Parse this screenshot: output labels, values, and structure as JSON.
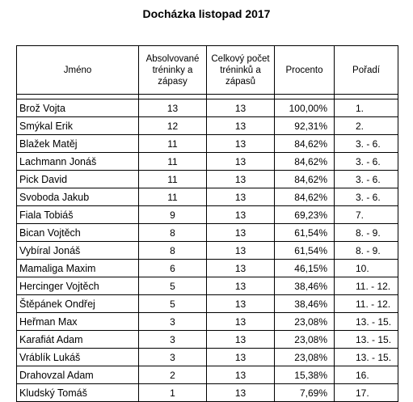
{
  "title": "Docházka listopad 2017",
  "headers": {
    "name": "Jméno",
    "attended": "Absolvované tréninky a zápasy",
    "total": "Celkový počet tréninků a zápasů",
    "percent": "Procento",
    "rank": "Pořadí"
  },
  "rows": [
    {
      "name": "Brož Vojta",
      "attended": "13",
      "total": "13",
      "percent": "100,00%",
      "rank": "1."
    },
    {
      "name": "Smýkal Erik",
      "attended": "12",
      "total": "13",
      "percent": "92,31%",
      "rank": "2."
    },
    {
      "name": "Blažek Matěj",
      "attended": "11",
      "total": "13",
      "percent": "84,62%",
      "rank": "3. - 6."
    },
    {
      "name": "Lachmann Jonáš",
      "attended": "11",
      "total": "13",
      "percent": "84,62%",
      "rank": "3. - 6."
    },
    {
      "name": "Pick David",
      "attended": "11",
      "total": "13",
      "percent": "84,62%",
      "rank": "3. - 6."
    },
    {
      "name": "Svoboda Jakub",
      "attended": "11",
      "total": "13",
      "percent": "84,62%",
      "rank": "3. - 6."
    },
    {
      "name": "Fiala Tobiáš",
      "attended": "9",
      "total": "13",
      "percent": "69,23%",
      "rank": "7."
    },
    {
      "name": "Bican Vojtěch",
      "attended": "8",
      "total": "13",
      "percent": "61,54%",
      "rank": "8. - 9."
    },
    {
      "name": "Vybíral Jonáš",
      "attended": "8",
      "total": "13",
      "percent": "61,54%",
      "rank": "8. - 9."
    },
    {
      "name": "Mamaliga Maxim",
      "attended": "6",
      "total": "13",
      "percent": "46,15%",
      "rank": "10."
    },
    {
      "name": "Hercinger Vojtěch",
      "attended": "5",
      "total": "13",
      "percent": "38,46%",
      "rank": "11. - 12."
    },
    {
      "name": "Štěpánek Ondřej",
      "attended": "5",
      "total": "13",
      "percent": "38,46%",
      "rank": "11. - 12."
    },
    {
      "name": "Heřman Max",
      "attended": "3",
      "total": "13",
      "percent": "23,08%",
      "rank": "13. - 15."
    },
    {
      "name": "Karafiát Adam",
      "attended": "3",
      "total": "13",
      "percent": "23,08%",
      "rank": "13. - 15."
    },
    {
      "name": "Vráblík Lukáš",
      "attended": "3",
      "total": "13",
      "percent": "23,08%",
      "rank": "13. - 15."
    },
    {
      "name": "Drahovzal Adam",
      "attended": "2",
      "total": "13",
      "percent": "15,38%",
      "rank": "16."
    },
    {
      "name": "Kludský Tomáš",
      "attended": "1",
      "total": "13",
      "percent": "7,69%",
      "rank": "17."
    }
  ]
}
